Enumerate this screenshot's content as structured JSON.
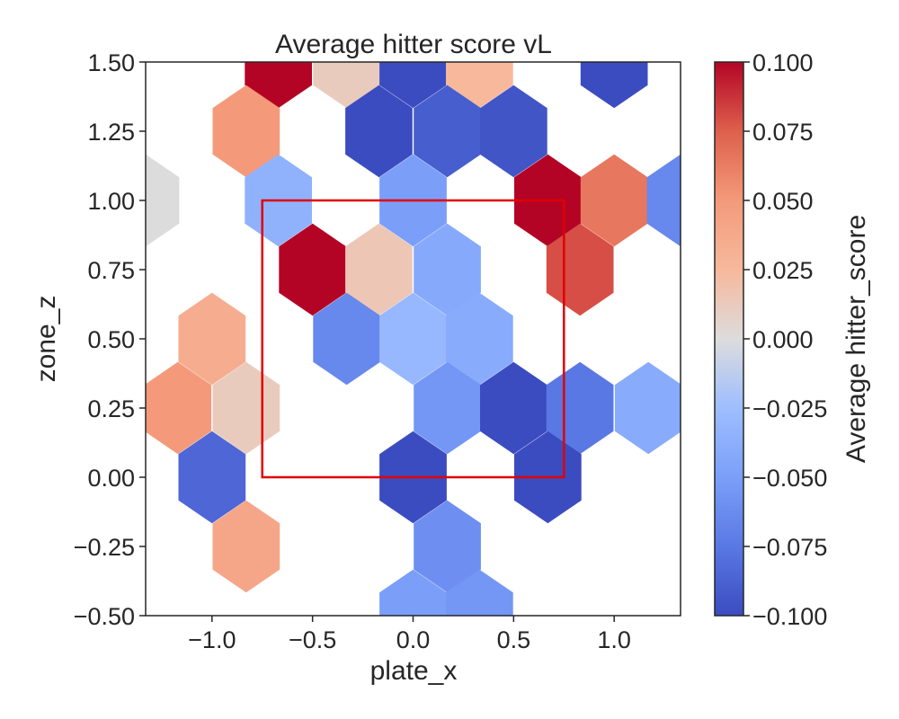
{
  "chart_data": {
    "type": "heatmap",
    "subtype": "hexbin",
    "title": "Average hitter score vL",
    "xlabel": "plate_x",
    "ylabel": "zone_z",
    "xlim": [
      -1.33,
      1.33
    ],
    "ylim": [
      -0.5,
      1.5
    ],
    "x_ticks": [
      -1.0,
      -0.5,
      0.0,
      0.5,
      1.0
    ],
    "x_tick_labels": [
      "−1.0",
      "−0.5",
      "0.0",
      "0.5",
      "1.0"
    ],
    "y_ticks": [
      -0.5,
      -0.25,
      0.0,
      0.25,
      0.5,
      0.75,
      1.0,
      1.25,
      1.5
    ],
    "y_tick_labels": [
      "−0.50",
      "−0.25",
      "0.00",
      "0.25",
      "0.50",
      "0.75",
      "1.00",
      "1.25",
      "1.50"
    ],
    "colorbar": {
      "label": "Average hitter_score",
      "vmin": -0.1,
      "vmax": 0.1,
      "colormap": "coolwarm",
      "ticks": [
        0.1,
        0.075,
        0.05,
        0.025,
        0.0,
        -0.025,
        -0.05,
        -0.075,
        -0.1
      ],
      "tick_labels": [
        "0.100",
        "0.075",
        "0.050",
        "0.025",
        "0.000",
        "−0.025",
        "−0.050",
        "−0.075",
        "−0.100"
      ]
    },
    "hex_size_x": 0.167,
    "hex_size_y": 0.25,
    "cells": [
      {
        "x": -0.67,
        "y": 1.5,
        "value": 0.1
      },
      {
        "x": -0.33,
        "y": 1.5,
        "value": 0.012
      },
      {
        "x": 0.0,
        "y": 1.5,
        "value": -0.1
      },
      {
        "x": 0.33,
        "y": 1.5,
        "value": 0.025
      },
      {
        "x": 1.0,
        "y": 1.5,
        "value": -0.1
      },
      {
        "x": -0.83,
        "y": 1.25,
        "value": 0.05
      },
      {
        "x": -0.17,
        "y": 1.25,
        "value": -0.1
      },
      {
        "x": 0.17,
        "y": 1.25,
        "value": -0.09
      },
      {
        "x": 0.5,
        "y": 1.25,
        "value": -0.095
      },
      {
        "x": -1.33,
        "y": 1.0,
        "value": 0.0
      },
      {
        "x": -0.67,
        "y": 1.0,
        "value": -0.035
      },
      {
        "x": 0.0,
        "y": 1.0,
        "value": -0.05
      },
      {
        "x": 0.67,
        "y": 1.0,
        "value": 0.1
      },
      {
        "x": 1.0,
        "y": 1.0,
        "value": 0.065
      },
      {
        "x": 1.33,
        "y": 1.0,
        "value": -0.065
      },
      {
        "x": -0.5,
        "y": 0.75,
        "value": 0.1
      },
      {
        "x": -0.17,
        "y": 0.75,
        "value": 0.015
      },
      {
        "x": 0.17,
        "y": 0.75,
        "value": -0.042
      },
      {
        "x": 0.83,
        "y": 0.75,
        "value": 0.08
      },
      {
        "x": -1.0,
        "y": 0.5,
        "value": 0.035
      },
      {
        "x": -0.33,
        "y": 0.5,
        "value": -0.065
      },
      {
        "x": 0.0,
        "y": 0.5,
        "value": -0.03
      },
      {
        "x": 0.33,
        "y": 0.5,
        "value": -0.04
      },
      {
        "x": -1.17,
        "y": 0.25,
        "value": 0.05
      },
      {
        "x": -0.83,
        "y": 0.25,
        "value": 0.012
      },
      {
        "x": 0.17,
        "y": 0.25,
        "value": -0.055
      },
      {
        "x": 0.5,
        "y": 0.25,
        "value": -0.1
      },
      {
        "x": 0.83,
        "y": 0.25,
        "value": -0.075
      },
      {
        "x": 1.17,
        "y": 0.25,
        "value": -0.04
      },
      {
        "x": -1.0,
        "y": 0.0,
        "value": -0.085
      },
      {
        "x": 0.0,
        "y": 0.0,
        "value": -0.1
      },
      {
        "x": 0.67,
        "y": 0.0,
        "value": -0.1
      },
      {
        "x": -0.83,
        "y": -0.25,
        "value": 0.04
      },
      {
        "x": 0.17,
        "y": -0.25,
        "value": -0.06
      },
      {
        "x": 0.0,
        "y": -0.5,
        "value": -0.05
      },
      {
        "x": 0.33,
        "y": -0.5,
        "value": -0.055
      }
    ],
    "strike_zone": {
      "x0": -0.75,
      "x1": 0.75,
      "y0": 0.0,
      "y1": 1.0,
      "color": "#e00000"
    }
  }
}
